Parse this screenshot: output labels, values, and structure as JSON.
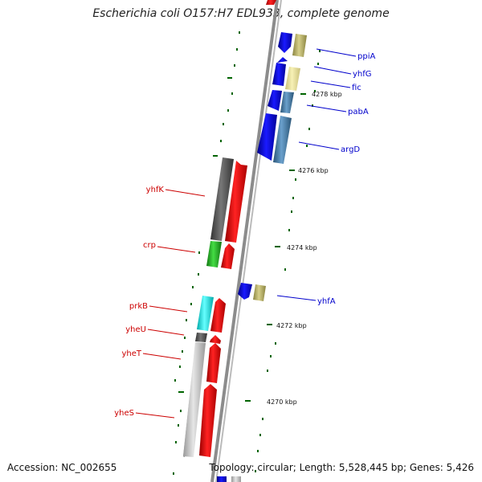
{
  "title": "Escherichia coli O157:H7 EDL933, complete genome",
  "footer": {
    "accession": "Accession: NC_002655",
    "summary": "Topology: circular; Length: 5,528,445 bp; Genes: 5,426"
  },
  "kbp_labels": [
    "4278 kbp",
    "4276 kbp",
    "4274 kbp",
    "4272 kbp",
    "4270 kbp"
  ],
  "genes_right": [
    "ppiA",
    "yhfG",
    "fic",
    "pabA",
    "argD",
    "yhfA"
  ],
  "genes_left": [
    "yhfK",
    "crp",
    "prkB",
    "yheU",
    "yheT",
    "yheS"
  ],
  "colors": {
    "blue": "#0000ee",
    "steel": "#4682b4",
    "khaki": "#bdb76b",
    "yellow": "#eee8aa",
    "red": "#ff0000",
    "dim": "#555555",
    "green": "#22bb22",
    "cyan": "#00eeee",
    "silver": "#c8c8c8",
    "tick": "#006400"
  }
}
